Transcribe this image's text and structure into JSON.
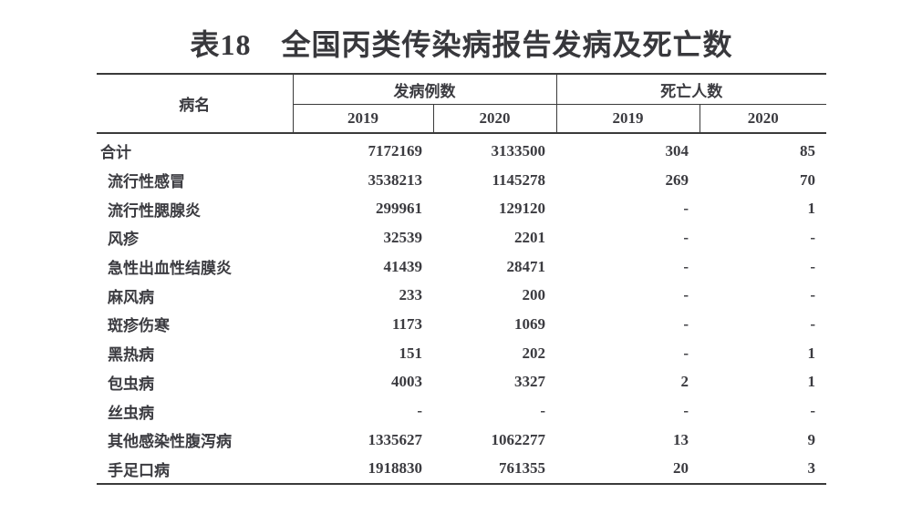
{
  "title": "表18　全国丙类传染病报告发病及死亡数",
  "colors": {
    "background": "#ffffff",
    "text": "#3b3b40",
    "border": "#3a3a3a"
  },
  "table": {
    "disease_header": "病名",
    "group_headers": {
      "cases": "发病例数",
      "deaths": "死亡人数"
    },
    "year_headers": {
      "cases_2019": "2019",
      "cases_2020": "2020",
      "deaths_2019": "2019",
      "deaths_2020": "2020"
    },
    "rows": [
      {
        "name": "合计",
        "cases_2019": "7172169",
        "cases_2020": "3133500",
        "deaths_2019": "304",
        "deaths_2020": "85"
      },
      {
        "name": "流行性感冒",
        "cases_2019": "3538213",
        "cases_2020": "1145278",
        "deaths_2019": "269",
        "deaths_2020": "70"
      },
      {
        "name": "流行性腮腺炎",
        "cases_2019": "299961",
        "cases_2020": "129120",
        "deaths_2019": "-",
        "deaths_2020": "1"
      },
      {
        "name": "风疹",
        "cases_2019": "32539",
        "cases_2020": "2201",
        "deaths_2019": "-",
        "deaths_2020": "-"
      },
      {
        "name": "急性出血性结膜炎",
        "cases_2019": "41439",
        "cases_2020": "28471",
        "deaths_2019": "-",
        "deaths_2020": "-"
      },
      {
        "name": "麻风病",
        "cases_2019": "233",
        "cases_2020": "200",
        "deaths_2019": "-",
        "deaths_2020": "-"
      },
      {
        "name": "斑疹伤寒",
        "cases_2019": "1173",
        "cases_2020": "1069",
        "deaths_2019": "-",
        "deaths_2020": "-"
      },
      {
        "name": "黑热病",
        "cases_2019": "151",
        "cases_2020": "202",
        "deaths_2019": "-",
        "deaths_2020": "1"
      },
      {
        "name": "包虫病",
        "cases_2019": "4003",
        "cases_2020": "3327",
        "deaths_2019": "2",
        "deaths_2020": "1"
      },
      {
        "name": "丝虫病",
        "cases_2019": "-",
        "cases_2020": "-",
        "deaths_2019": "-",
        "deaths_2020": "-"
      },
      {
        "name": "其他感染性腹泻病",
        "cases_2019": "1335627",
        "cases_2020": "1062277",
        "deaths_2019": "13",
        "deaths_2020": "9"
      },
      {
        "name": "手足口病",
        "cases_2019": "1918830",
        "cases_2020": "761355",
        "deaths_2019": "20",
        "deaths_2020": "3"
      }
    ]
  }
}
